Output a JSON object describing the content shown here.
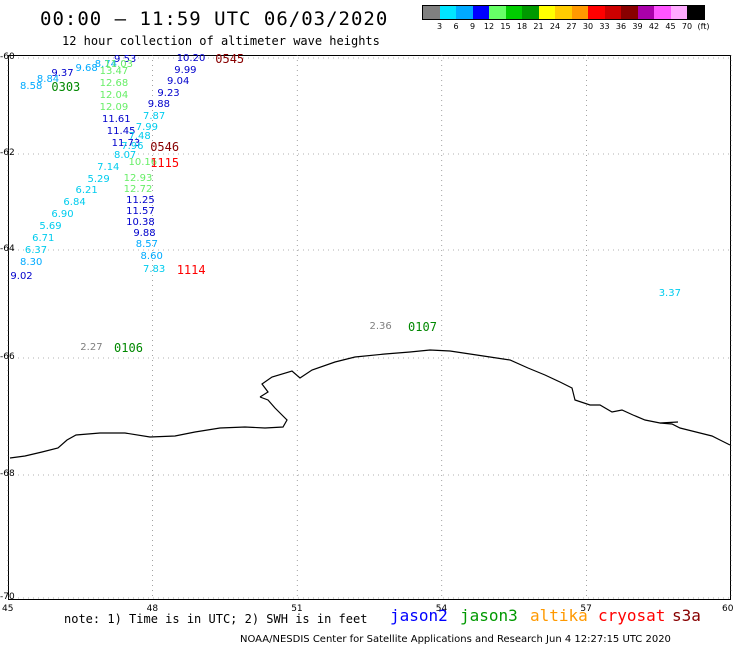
{
  "title": "00:00 – 11:59 UTC 06/03/2020",
  "subtitle": "12 hour collection of altimeter wave heights",
  "scale": {
    "colors": [
      "#808080",
      "#00e5ff",
      "#00aaff",
      "#0000ff",
      "#66ff66",
      "#00cc00",
      "#009900",
      "#ffff00",
      "#ffcc00",
      "#ff9900",
      "#ff0000",
      "#cc0000",
      "#880000",
      "#aa00aa",
      "#ff55ff",
      "#ffaaff",
      "#000000"
    ],
    "labels": [
      "3",
      "6",
      "9",
      "12",
      "15",
      "18",
      "21",
      "24",
      "27",
      "30",
      "33",
      "36",
      "39",
      "42",
      "45",
      "70",
      "(ft)"
    ]
  },
  "axes": {
    "lat_labels": [
      "-60",
      "-62",
      "-64",
      "-66",
      "-68",
      "-70"
    ],
    "lon_labels": [
      "45",
      "48",
      "51",
      "54",
      "57",
      "60"
    ]
  },
  "observations": [
    {
      "v": "9.53",
      "lon": 47.2,
      "lat": -60.02,
      "c": "#0000cc"
    },
    {
      "v": "8.74",
      "lon": 46.8,
      "lat": -60.12,
      "c": "#00aaff"
    },
    {
      "v": "11.03",
      "lon": 47.0,
      "lat": -60.12,
      "c": "#66ee66"
    },
    {
      "v": "9.68",
      "lon": 46.4,
      "lat": -60.2,
      "c": "#00aaff"
    },
    {
      "v": "13.47",
      "lon": 46.9,
      "lat": -60.28,
      "c": "#66ee66"
    },
    {
      "v": "9.37",
      "lon": 45.9,
      "lat": -60.32,
      "c": "#0000cc"
    },
    {
      "v": "8.84",
      "lon": 45.6,
      "lat": -60.43,
      "c": "#00aaff"
    },
    {
      "v": "8.58",
      "lon": 45.25,
      "lat": -60.58,
      "c": "#00aaff"
    },
    {
      "v": "12.68",
      "lon": 46.9,
      "lat": -60.52,
      "c": "#66ee66"
    },
    {
      "v": "12.04",
      "lon": 46.9,
      "lat": -60.77,
      "c": "#66ee66"
    },
    {
      "v": "12.09",
      "lon": 46.9,
      "lat": -61.02,
      "c": "#66ee66"
    },
    {
      "v": "11.61",
      "lon": 46.95,
      "lat": -61.28,
      "c": "#0000cc"
    },
    {
      "v": "11.45",
      "lon": 47.05,
      "lat": -61.53,
      "c": "#0000cc"
    },
    {
      "v": "11.73",
      "lon": 47.15,
      "lat": -61.77,
      "c": "#0000cc"
    },
    {
      "v": "7.96",
      "lon": 47.35,
      "lat": -61.84,
      "c": "#00ccee"
    },
    {
      "v": "8.07",
      "lon": 47.2,
      "lat": -62.02,
      "c": "#00ccee"
    },
    {
      "v": "10.16",
      "lon": 47.5,
      "lat": -62.17,
      "c": "#66ee66"
    },
    {
      "v": "7.14",
      "lon": 46.85,
      "lat": -62.27,
      "c": "#00ccee"
    },
    {
      "v": "5.29",
      "lon": 46.65,
      "lat": -62.52,
      "c": "#00ccee"
    },
    {
      "v": "12.93",
      "lon": 47.4,
      "lat": -62.5,
      "c": "#66ee66"
    },
    {
      "v": "12.72",
      "lon": 47.4,
      "lat": -62.72,
      "c": "#66ee66"
    },
    {
      "v": "6.21",
      "lon": 46.4,
      "lat": -62.76,
      "c": "#00ccee"
    },
    {
      "v": "6.84",
      "lon": 46.15,
      "lat": -63.01,
      "c": "#00ccee"
    },
    {
      "v": "11.25",
      "lon": 47.45,
      "lat": -62.95,
      "c": "#0000cc"
    },
    {
      "v": "6.90",
      "lon": 45.9,
      "lat": -63.26,
      "c": "#00ccee"
    },
    {
      "v": "11.57",
      "lon": 47.45,
      "lat": -63.18,
      "c": "#0000cc"
    },
    {
      "v": "5.69",
      "lon": 45.65,
      "lat": -63.5,
      "c": "#00ccee"
    },
    {
      "v": "10.38",
      "lon": 47.45,
      "lat": -63.41,
      "c": "#0000cc"
    },
    {
      "v": "6.71",
      "lon": 45.5,
      "lat": -63.76,
      "c": "#00ccee"
    },
    {
      "v": "9.88",
      "lon": 47.6,
      "lat": -63.65,
      "c": "#0000cc"
    },
    {
      "v": "6.37",
      "lon": 45.35,
      "lat": -64.0,
      "c": "#00ccee"
    },
    {
      "v": "8.57",
      "lon": 47.65,
      "lat": -63.88,
      "c": "#00aaff"
    },
    {
      "v": "8.30",
      "lon": 45.25,
      "lat": -64.23,
      "c": "#00aaff"
    },
    {
      "v": "8.60",
      "lon": 47.75,
      "lat": -64.12,
      "c": "#00aaff"
    },
    {
      "v": "9.02",
      "lon": 45.05,
      "lat": -64.48,
      "c": "#0000cc"
    },
    {
      "v": "7.83",
      "lon": 47.8,
      "lat": -64.35,
      "c": "#00ccee"
    },
    {
      "v": "10.20",
      "lon": 48.5,
      "lat": -60.0,
      "c": "#0000cc"
    },
    {
      "v": "9.99",
      "lon": 48.45,
      "lat": -60.25,
      "c": "#0000cc"
    },
    {
      "v": "9.04",
      "lon": 48.3,
      "lat": -60.48,
      "c": "#0000cc"
    },
    {
      "v": "9.23",
      "lon": 48.1,
      "lat": -60.72,
      "c": "#0000cc"
    },
    {
      "v": "9.88",
      "lon": 47.9,
      "lat": -60.96,
      "c": "#0000cc"
    },
    {
      "v": "7.87",
      "lon": 47.8,
      "lat": -61.2,
      "c": "#00ccee"
    },
    {
      "v": "7.99",
      "lon": 47.65,
      "lat": -61.43,
      "c": "#00ccee"
    },
    {
      "v": "7.48",
      "lon": 47.5,
      "lat": -61.63,
      "c": "#00ccee"
    },
    {
      "v": "3.37",
      "lon": 58.5,
      "lat": -64.8,
      "c": "#00ccee"
    },
    {
      "v": "2.36",
      "lon": 52.5,
      "lat": -65.4,
      "c": "#808080"
    },
    {
      "v": "2.27",
      "lon": 46.5,
      "lat": -65.8,
      "c": "#808080"
    }
  ],
  "times": [
    {
      "t": "0545",
      "lon": 49.3,
      "lat": -60.0,
      "c": "#880000"
    },
    {
      "t": "0303",
      "lon": 45.9,
      "lat": -60.58,
      "c": "#008800"
    },
    {
      "t": "0546",
      "lon": 47.95,
      "lat": -61.84,
      "c": "#880000"
    },
    {
      "t": "1115",
      "lon": 47.95,
      "lat": -62.17,
      "c": "#ff0000"
    },
    {
      "t": "1114",
      "lon": 48.5,
      "lat": -64.35,
      "c": "#ff0000"
    },
    {
      "t": "0107",
      "lon": 53.3,
      "lat": -65.4,
      "c": "#008800"
    },
    {
      "t": "0106",
      "lon": 47.2,
      "lat": -65.8,
      "c": "#008800"
    }
  ],
  "note": "note:  1) Time is in UTC;  2) SWH is in feet",
  "legend": [
    {
      "name": "jason2",
      "color": "#0000ff"
    },
    {
      "name": "jason3",
      "color": "#009900"
    },
    {
      "name": "altika",
      "color": "#ff9900"
    },
    {
      "name": "cryosat",
      "color": "#ff0000"
    },
    {
      "name": "s3a",
      "color": "#880000"
    }
  ],
  "credit": "NOAA/NESDIS Center for Satellite Applications and Research    Jun  4 12:27:15 UTC 2020"
}
